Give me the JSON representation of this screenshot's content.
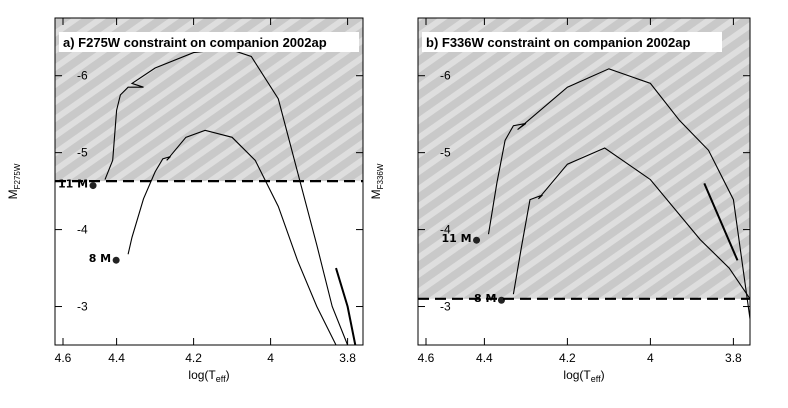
{
  "chart_data": [
    {
      "type": "line",
      "title": "a) F275W constraint on companion 2002ap",
      "xlabel": "log(T",
      "xlabel_sub": "eff",
      "xlabel_end": ")",
      "ylabel": "M",
      "ylabel_sub": "F275W",
      "xlim": [
        4.56,
        3.76
      ],
      "ylim": [
        -2.5,
        -6.75
      ],
      "xticks": [
        4.6,
        4.4,
        4.2,
        4,
        3.8
      ],
      "yticks": [
        -6,
        -5,
        -4,
        -3
      ],
      "constraint": -4.63,
      "series": [
        {
          "label": "11 M",
          "color": "#000000",
          "x": [
            4.43,
            4.41,
            4.4,
            4.39,
            4.37,
            4.33,
            4.36,
            4.3,
            4.2,
            4.11,
            4.05,
            3.98,
            3.93,
            3.88,
            3.84,
            3.8
          ],
          "values": [
            -4.65,
            -4.9,
            -5.55,
            -5.75,
            -5.85,
            -5.85,
            -5.9,
            -6.1,
            -6.3,
            -6.35,
            -6.25,
            -5.7,
            -4.75,
            -3.8,
            -3.0,
            -2.5
          ]
        },
        {
          "label": "8 M",
          "color": "#000000",
          "x": [
            4.37,
            4.36,
            4.33,
            4.3,
            4.28,
            4.26,
            4.27,
            4.22,
            4.17,
            4.1,
            4.04,
            3.98,
            3.93,
            3.88,
            3.83
          ],
          "values": [
            -3.68,
            -3.9,
            -4.4,
            -4.75,
            -4.92,
            -4.95,
            -4.9,
            -5.2,
            -5.29,
            -5.2,
            -4.9,
            -4.3,
            -3.6,
            -3.0,
            -2.5
          ]
        },
        {
          "color": "#000000",
          "x": [
            3.83,
            3.8,
            3.78
          ],
          "values": [
            -3.5,
            -3.0,
            -2.5
          ]
        }
      ]
    },
    {
      "type": "line",
      "title": "b) F336W constraint on companion 2002ap",
      "xlabel": "log(T",
      "xlabel_sub": "eff",
      "xlabel_end": ")",
      "ylabel": "M",
      "ylabel_sub": "F336W",
      "xlim": [
        4.56,
        3.76
      ],
      "ylim": [
        -2.5,
        -6.75
      ],
      "xticks": [
        4.6,
        4.4,
        4.2,
        4,
        3.8
      ],
      "yticks": [
        -6,
        -5,
        -4,
        -3
      ],
      "constraint": -3.1,
      "series": [
        {
          "label": "11 M",
          "color": "#000000",
          "x": [
            4.39,
            4.37,
            4.35,
            4.33,
            4.3,
            4.32,
            4.2,
            4.1,
            4.0,
            3.93,
            3.86,
            3.8,
            3.76
          ],
          "values": [
            -3.94,
            -4.6,
            -5.16,
            -5.35,
            -5.38,
            -5.3,
            -5.85,
            -6.09,
            -5.9,
            -5.42,
            -5.03,
            -4.39,
            -2.84
          ]
        },
        {
          "label": "8 M",
          "color": "#000000",
          "x": [
            4.33,
            4.31,
            4.29,
            4.26,
            4.27,
            4.2,
            4.11,
            4.0,
            3.88,
            3.81,
            3.76
          ],
          "values": [
            -3.16,
            -3.8,
            -4.39,
            -4.45,
            -4.4,
            -4.85,
            -5.06,
            -4.65,
            -3.87,
            -3.5,
            -3.1
          ]
        },
        {
          "color": "#000000",
          "x": [
            3.87,
            3.83,
            3.79
          ],
          "values": [
            -4.6,
            -4.1,
            -3.6
          ]
        }
      ]
    }
  ]
}
